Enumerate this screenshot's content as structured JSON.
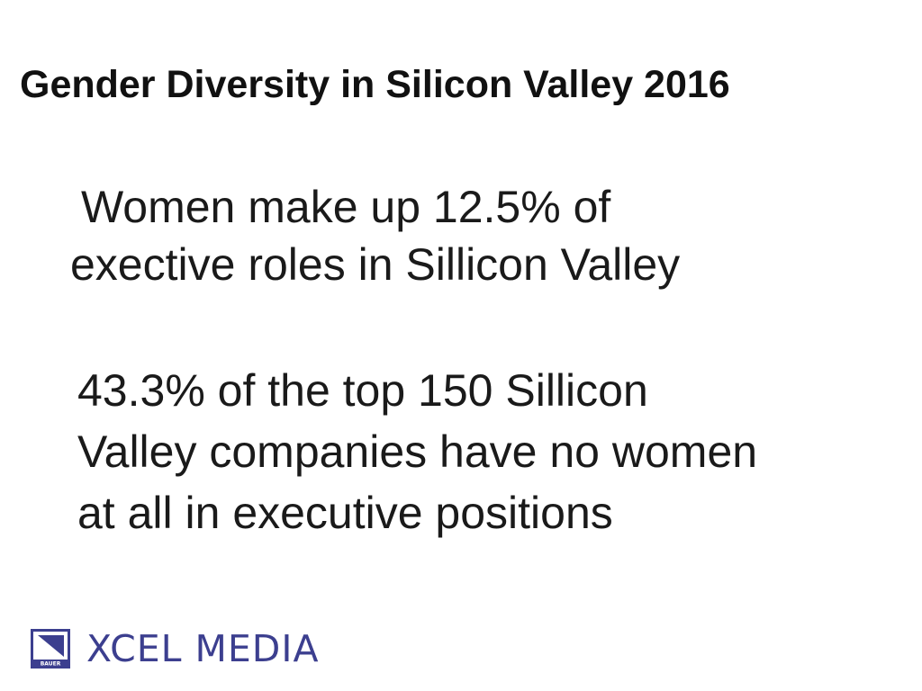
{
  "slide": {
    "title": "Gender Diversity in Silicon Valley 2016",
    "paragraph_1": {
      "line_1": "Women make up 12.5% of",
      "line_2": "exective roles in Sillicon Valley"
    },
    "paragraph_2": {
      "line_1": "43.3% of the top 150 Sillicon",
      "line_2": "Valley companies have no women",
      "line_3": "at all in executive positions"
    }
  },
  "logo": {
    "wordmark": "XCEL MEDIA",
    "badge_text": "BAUER",
    "color": "#3c3f8f"
  }
}
